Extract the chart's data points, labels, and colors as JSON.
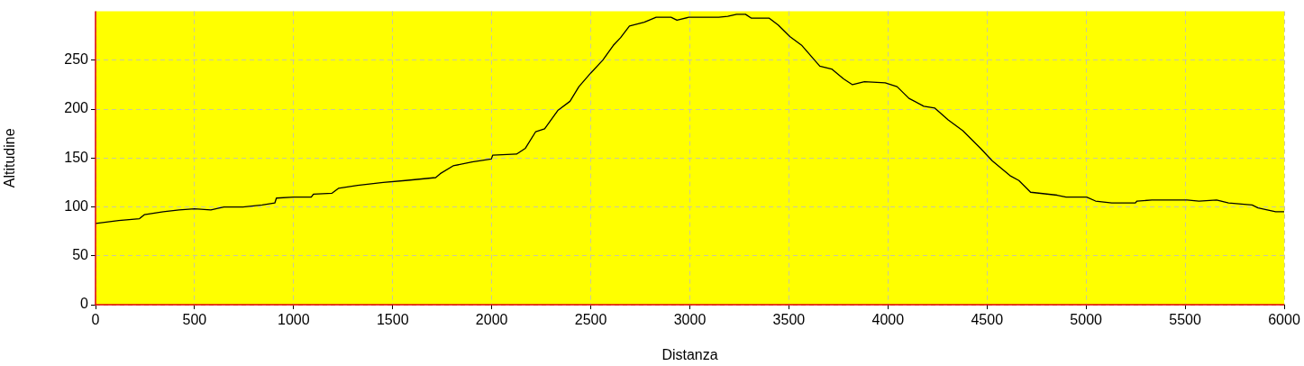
{
  "chart_data": {
    "type": "line",
    "xlabel": "Distanza",
    "ylabel": "Altitudine",
    "x": [
      0,
      117,
      222,
      246,
      342,
      422,
      500,
      582,
      648,
      744,
      841,
      905,
      913,
      1000,
      1089,
      1100,
      1194,
      1226,
      1323,
      1452,
      1564,
      1717,
      1740,
      1805,
      1901,
      1998,
      2005,
      2125,
      2170,
      2222,
      2267,
      2335,
      2395,
      2440,
      2500,
      2560,
      2613,
      2650,
      2695,
      2770,
      2830,
      2905,
      2935,
      2995,
      3146,
      3191,
      3236,
      3281,
      3311,
      3401,
      3446,
      3506,
      3566,
      3656,
      3716,
      3776,
      3821,
      3881,
      3986,
      4046,
      4106,
      4181,
      4237,
      4304,
      4378,
      4467,
      4527,
      4616,
      4661,
      4720,
      4854,
      4899,
      5003,
      5048,
      5130,
      5249,
      5257,
      5332,
      5510,
      5570,
      5659,
      5719,
      5838,
      5868,
      5957,
      6000
    ],
    "values": [
      83,
      86,
      88,
      92,
      95,
      97,
      98,
      97,
      100,
      100,
      102,
      104,
      109,
      110,
      110,
      113,
      114,
      119,
      122,
      125,
      127,
      130,
      134,
      142,
      146,
      149,
      153,
      154,
      160,
      177,
      180,
      199,
      208,
      223,
      237,
      250,
      265,
      273,
      285,
      289,
      294,
      294,
      291,
      294,
      294,
      295,
      297,
      297,
      293,
      293,
      286,
      274,
      265,
      244,
      241,
      231,
      225,
      228,
      227,
      223,
      211,
      203,
      201,
      189,
      178,
      160,
      147,
      132,
      127,
      115,
      112,
      110,
      110,
      106,
      104,
      104,
      106,
      107,
      107,
      106,
      107,
      104,
      102,
      99,
      95,
      95
    ],
    "color": "#000000",
    "marker": "none",
    "grid": true,
    "xlim": [
      0,
      6000
    ],
    "ylim": [
      0,
      300
    ],
    "xticks": [
      0,
      500,
      1000,
      1500,
      2000,
      2500,
      3000,
      3500,
      4000,
      4500,
      5000,
      5500,
      6000
    ],
    "yticks": [
      0,
      50,
      100,
      150,
      200,
      250
    ]
  }
}
